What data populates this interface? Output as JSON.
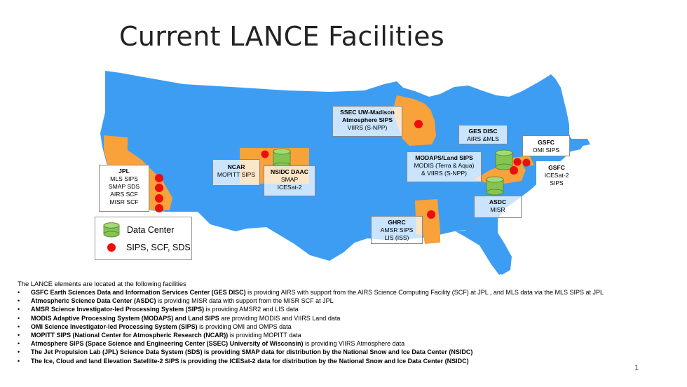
{
  "slide": {
    "title": "Current LANCE Facilities",
    "page_number": "1"
  },
  "colors": {
    "map_blue": "#3d9df3",
    "state_orange": "#f7a23a",
    "state_light": "#fbd297",
    "sips_red": "#ee0d0d",
    "datacenter_green": "#84c551"
  },
  "labels": {
    "jpl": {
      "name": "JPL",
      "lines": [
        "MLS SIPS",
        "SMAP SDS",
        "AIRS SCF",
        "MISR SCF"
      ]
    },
    "ncar": {
      "name": "NCAR",
      "lines": [
        "MOPITT SIPS"
      ]
    },
    "nsidc": {
      "name": "NSIDC DAAC",
      "lines": [
        "SMAP",
        "ICESat-2"
      ]
    },
    "ssec": {
      "name": "SSEC UW-Madison",
      "name2": "Atmosphere SIPS",
      "lines": [
        "VIIRS (S-NPP)"
      ]
    },
    "gesdisc": {
      "name": "GES DISC",
      "lines": [
        "AIRS &MLS"
      ]
    },
    "modaps": {
      "name": "MODAPS/Land SIPS",
      "lines": [
        "MODIS (Terra & Aqua)",
        "& VIIRS (S-NPP)"
      ]
    },
    "gsfc_omi": {
      "name": "GSFC",
      "lines": [
        "OMI SIPS"
      ]
    },
    "gsfc_icesat": {
      "name": "GSFC",
      "lines": [
        "ICESat-2",
        "SIPS"
      ]
    },
    "asdc": {
      "name": "ASDC",
      "lines": [
        "MISR"
      ]
    },
    "ghrc": {
      "name": "GHRC",
      "lines": [
        "AMSR SIPS",
        "LIS (ISS)"
      ]
    }
  },
  "legend": {
    "data_center": "Data Center",
    "sips": "SIPS, SCF, SDS"
  },
  "text": {
    "intro": "The LANCE elements are located at the following facilities",
    "items": [
      {
        "bold": "GSFC Earth Sciences Data and Information Services Center (GES DISC)",
        "rest": " is providing AIRS with support from the AIRS Science Computing Facility (SCF) at JPL , and MLS data via the MLS SIPS at JPL"
      },
      {
        "bold": "Atmospheric Science Data Center (ASDC)",
        "rest": " is providing MISR data with support from the MISR SCF at JPL"
      },
      {
        "bold": "AMSR Science Investigator-led Processing System (SIPS)",
        "rest": " is providing AMSR2 and LIS data"
      },
      {
        "bold": "MODIS Adaptive Processing System (MODAPS) and Land SIPS",
        "rest": " are providing MODIS and VIIRS Land data"
      },
      {
        "bold": "OMI Science Investigator-led Processing System (SIPS)",
        "rest": " is providing OMI and OMPS data"
      },
      {
        "bold": "MOPITT SIPS (National Center for Atmospheric Research (NCAR))",
        "rest": " is providing MOPITT data"
      },
      {
        "bold": "Atmosphere SIPS (Space Science and Engineering Center (SSEC) University of Wisconsin)",
        "rest": " is providing VIIRS Atmosphere data"
      },
      {
        "bold": "The Jet Propulsion Lab (JPL) Science Data System (SDS) is providing SMAP data for distribution by the National Snow and Ice Data Center (NSIDC)",
        "rest": ""
      },
      {
        "bold": "The Ice, Cloud and land Elevation Satellite-2 SIPS is providing the ICESat-2 data for distribution by the National Snow and Ice Data Center (NSIDC)",
        "rest": ""
      }
    ]
  }
}
